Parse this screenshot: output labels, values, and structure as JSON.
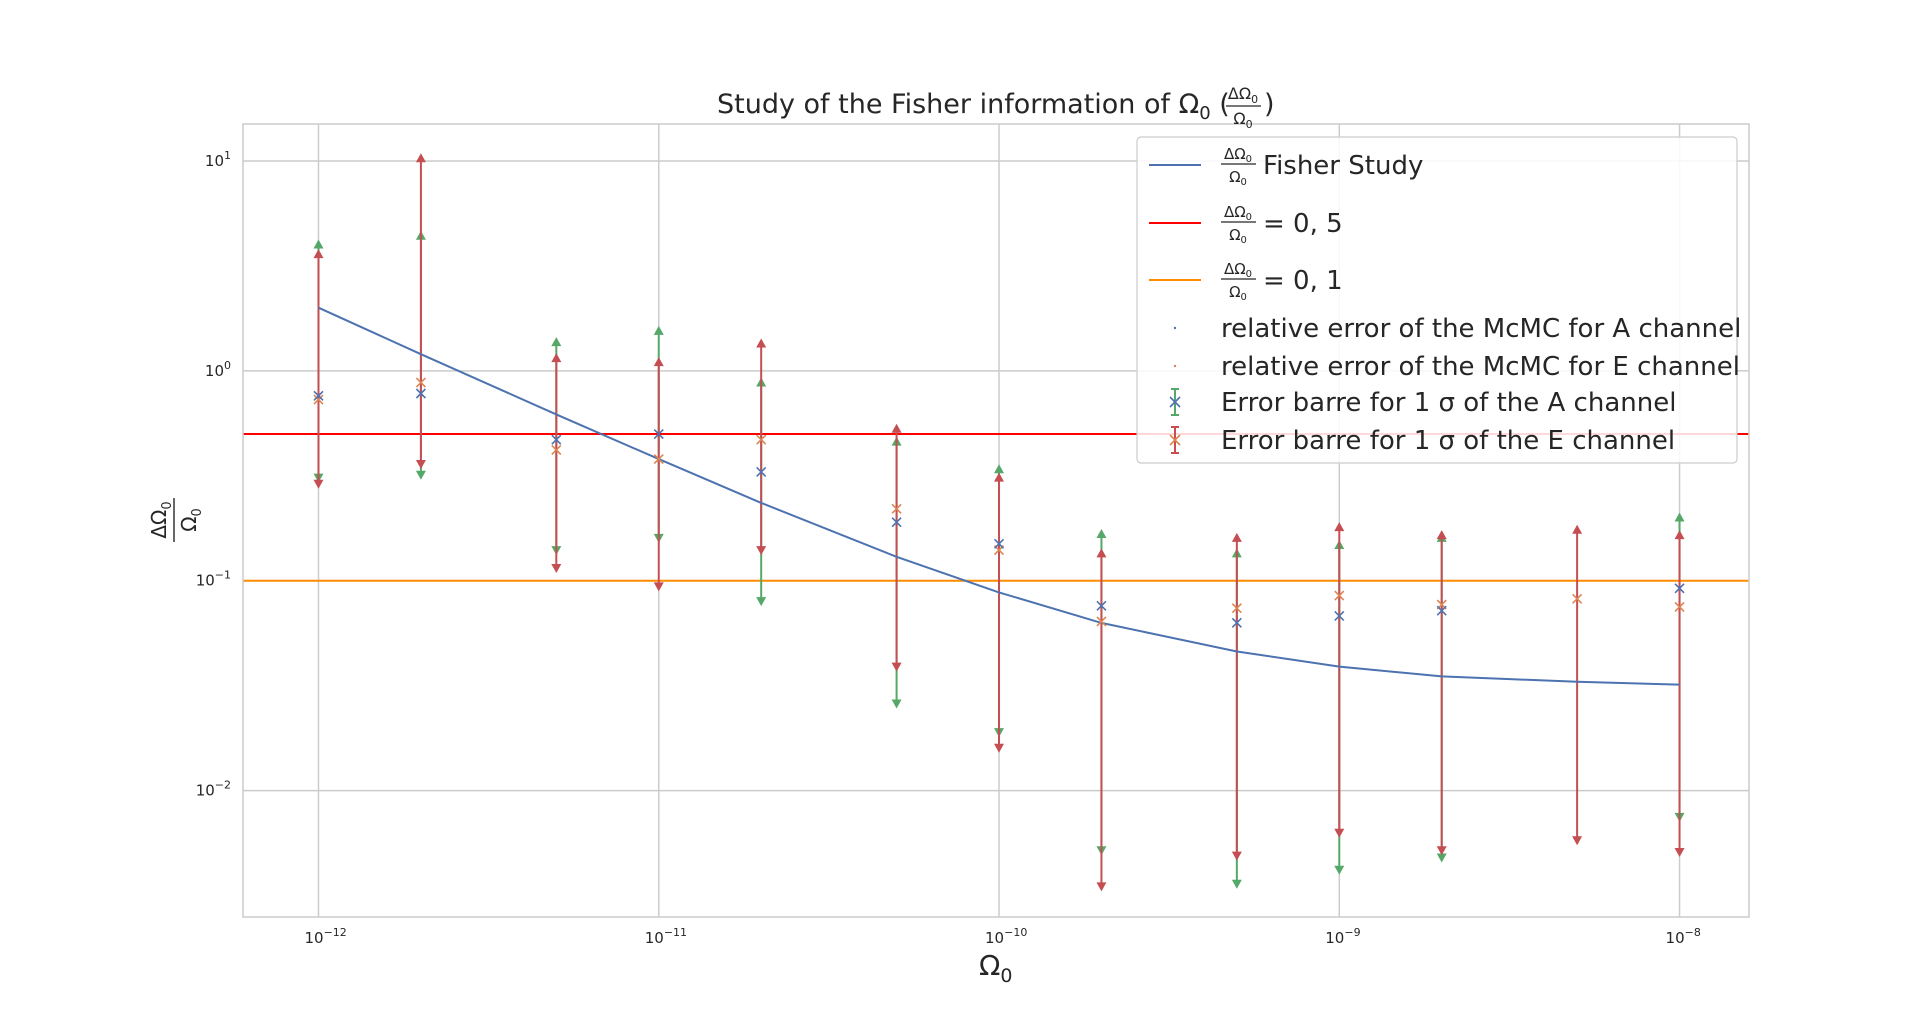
{
  "chart_data": {
    "type": "scatter",
    "title_text": "Study of the Fisher information of ",
    "title_symbol": "Ω",
    "title_sub": "0",
    "title_frac_num": "ΔΩ",
    "title_frac_den": "Ω",
    "xlabel": "Ω",
    "xlabel_sub": "0",
    "ylabel_num": "ΔΩ",
    "ylabel_den": "Ω",
    "ylabel_sub": "0",
    "x_scale": "log",
    "y_scale": "log",
    "xlim": [
      6e-13,
      1.6e-08
    ],
    "ylim": [
      0.0025,
      15
    ],
    "grid": true,
    "legend_position": "top-right",
    "x_ticks": [
      {
        "value": 1e-12,
        "base": "10",
        "exp": "−12"
      },
      {
        "value": 1e-11,
        "base": "10",
        "exp": "−11"
      },
      {
        "value": 1e-10,
        "base": "10",
        "exp": "−10"
      },
      {
        "value": 1e-09,
        "base": "10",
        "exp": "−9"
      },
      {
        "value": 1e-08,
        "base": "10",
        "exp": "−8"
      }
    ],
    "y_ticks": [
      {
        "value": 10,
        "base": "10",
        "exp": "1"
      },
      {
        "value": 1,
        "base": "10",
        "exp": "0"
      },
      {
        "value": 0.1,
        "base": "10",
        "exp": "−1"
      },
      {
        "value": 0.01,
        "base": "10",
        "exp": "−2"
      }
    ],
    "fisher_study": {
      "color": "#4c72b0",
      "x": [
        1e-12,
        2e-12,
        5e-12,
        1e-11,
        2e-11,
        5e-11,
        1e-10,
        2e-10,
        5e-10,
        1e-09,
        2e-09,
        5e-09,
        1e-08
      ],
      "y": [
        2.0,
        1.2,
        0.62,
        0.38,
        0.235,
        0.13,
        0.088,
        0.063,
        0.046,
        0.039,
        0.035,
        0.033,
        0.032
      ]
    },
    "hlines": [
      {
        "y": 0.5,
        "color": "#ff0000"
      },
      {
        "y": 0.1,
        "color": "#ff8c00"
      }
    ],
    "channel_A": {
      "color": "#4c72b0",
      "err_color": "#55a868",
      "points": [
        {
          "x": 1e-12,
          "y": 0.76,
          "lo": 0.31,
          "hi": 4.0
        },
        {
          "x": 2e-12,
          "y": 0.78,
          "lo": 0.32,
          "hi": 4.4
        },
        {
          "x": 5e-12,
          "y": 0.47,
          "lo": 0.14,
          "hi": 1.37
        },
        {
          "x": 1e-11,
          "y": 0.5,
          "lo": 0.16,
          "hi": 1.55
        },
        {
          "x": 2e-11,
          "y": 0.33,
          "lo": 0.08,
          "hi": 0.88
        },
        {
          "x": 5e-11,
          "y": 0.19,
          "lo": 0.026,
          "hi": 0.46
        },
        {
          "x": 1e-10,
          "y": 0.15,
          "lo": 0.019,
          "hi": 0.34
        },
        {
          "x": 2e-10,
          "y": 0.076,
          "lo": 0.0052,
          "hi": 0.167
        },
        {
          "x": 5e-10,
          "y": 0.063,
          "lo": 0.0036,
          "hi": 0.135
        },
        {
          "x": 1e-09,
          "y": 0.068,
          "lo": 0.0042,
          "hi": 0.148
        },
        {
          "x": 2e-09,
          "y": 0.072,
          "lo": 0.0048,
          "hi": 0.16
        },
        {
          "x": 1e-08,
          "y": 0.092,
          "lo": 0.0075,
          "hi": 0.2
        }
      ]
    },
    "channel_E": {
      "color": "#dd8452",
      "err_color": "#c44e52",
      "points": [
        {
          "x": 1e-12,
          "y": 0.73,
          "lo": 0.29,
          "hi": 3.6
        },
        {
          "x": 2e-12,
          "y": 0.88,
          "lo": 0.36,
          "hi": 10.3
        },
        {
          "x": 5e-12,
          "y": 0.42,
          "lo": 0.115,
          "hi": 1.15
        },
        {
          "x": 1e-11,
          "y": 0.38,
          "lo": 0.094,
          "hi": 1.1
        },
        {
          "x": 2e-11,
          "y": 0.47,
          "lo": 0.14,
          "hi": 1.35
        },
        {
          "x": 5e-11,
          "y": 0.22,
          "lo": 0.039,
          "hi": 0.53
        },
        {
          "x": 1e-10,
          "y": 0.14,
          "lo": 0.016,
          "hi": 0.31
        },
        {
          "x": 2e-10,
          "y": 0.064,
          "lo": 0.0035,
          "hi": 0.135
        },
        {
          "x": 5e-10,
          "y": 0.074,
          "lo": 0.0049,
          "hi": 0.16
        },
        {
          "x": 1e-09,
          "y": 0.085,
          "lo": 0.0063,
          "hi": 0.18
        },
        {
          "x": 2e-09,
          "y": 0.077,
          "lo": 0.0052,
          "hi": 0.165
        },
        {
          "x": 5e-09,
          "y": 0.082,
          "lo": 0.0058,
          "hi": 0.175
        },
        {
          "x": 1e-08,
          "y": 0.075,
          "lo": 0.0051,
          "hi": 0.165
        }
      ]
    },
    "legend": [
      {
        "kind": "line",
        "color": "#4c72b0",
        "frac_num": "ΔΩ",
        "frac_den": "Ω",
        "text": " Fisher Study"
      },
      {
        "kind": "line",
        "color": "#ff0000",
        "frac_num": "ΔΩ",
        "frac_den": "Ω",
        "text": "= 0, 5"
      },
      {
        "kind": "line",
        "color": "#ff8c00",
        "frac_num": "ΔΩ",
        "frac_den": "Ω",
        "text": "= 0, 1"
      },
      {
        "kind": "dot",
        "color": "#4c72b0",
        "text": "relative error of the McMC for A channel"
      },
      {
        "kind": "dot",
        "color": "#dd8452",
        "text": "relative error of the McMC for E channel"
      },
      {
        "kind": "errorbar",
        "color": "#55a868",
        "marker_color": "#4c72b0",
        "text": "Error barre for 1 σ of the A channel"
      },
      {
        "kind": "errorbar",
        "color": "#c44e52",
        "marker_color": "#dd8452",
        "text": "Error barre for 1 σ of the E channel"
      }
    ]
  }
}
